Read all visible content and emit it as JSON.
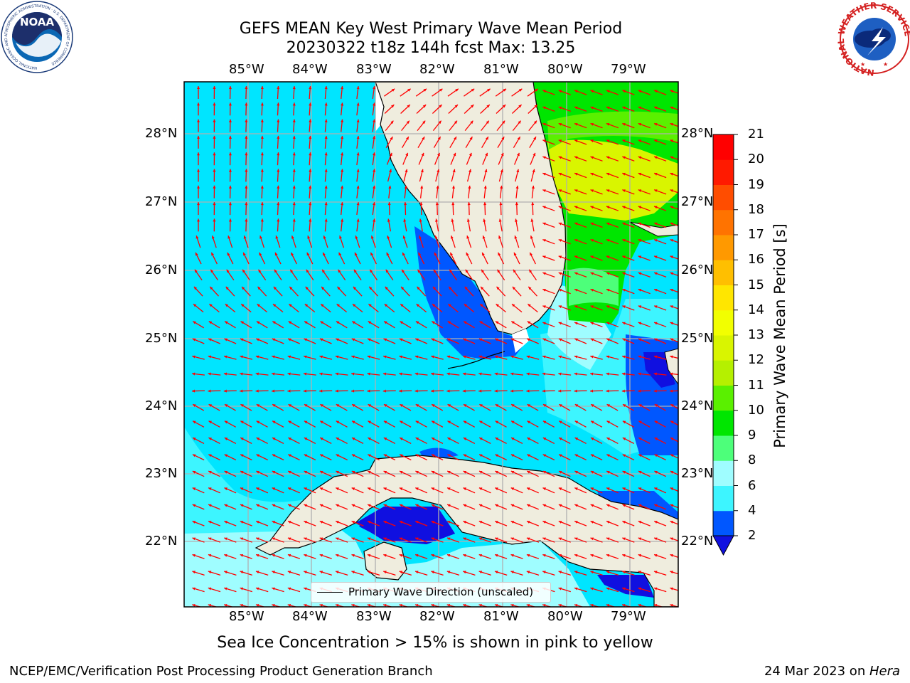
{
  "title": {
    "line1": "GEFS MEAN Key West Primary Wave Mean Period",
    "line2": "20230322 t18z 144h fcst   Max: 13.25"
  },
  "map": {
    "longitude_ticks": [
      "85°W",
      "84°W",
      "83°W",
      "82°W",
      "81°W",
      "80°W",
      "79°W"
    ],
    "latitude_ticks": [
      "28°N",
      "27°N",
      "26°N",
      "25°N",
      "24°N",
      "23°N",
      "22°N"
    ],
    "legend_label": "Primary Wave Direction (unscaled)",
    "arrow_color": "#ff0000",
    "land_color": "#efedde",
    "gridline_color": "#b0b0b0"
  },
  "colorbar": {
    "label": "Primary Wave Mean Period [s]",
    "ticks": [
      "2",
      "4",
      "6",
      "8",
      "9",
      "10",
      "11",
      "12",
      "13",
      "14",
      "15",
      "16",
      "17",
      "18",
      "19",
      "20",
      "21"
    ],
    "colors": [
      "#0057ff",
      "#00e5ff",
      "#3df5ff",
      "#9ffdff",
      "#4dff7a",
      "#00e600",
      "#5af000",
      "#b5f000",
      "#d9f500",
      "#f2ff00",
      "#ffe600",
      "#ffbf00",
      "#ff9900",
      "#ff7300",
      "#ff4d00",
      "#ff1a00",
      "#ff0000"
    ]
  },
  "logos": {
    "noaa_text": "NOAA",
    "noaa_ring": "NATIONAL OCEANIC AND ATMOSPHERIC ADMINISTRATION · U.S. DEPARTMENT OF COMMERCE",
    "nws_ring": "NATIONAL WEATHER SERVICE"
  },
  "footnote": "Sea Ice Concentration > 15% is shown in pink to yellow",
  "credit": "NCEP/EMC/Verification Post Processing Product Generation Branch",
  "date": "24 Mar 2023 on ",
  "machine": "Hera"
}
